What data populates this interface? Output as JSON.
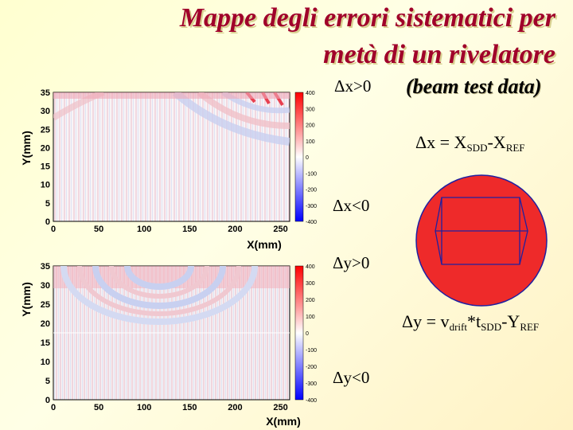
{
  "title": {
    "line1": "Mappe degli errori sistematici per",
    "line2": "metà di un rivelatore"
  },
  "beam_label": "(beam test data)",
  "labels": {
    "dx_pos": "Δx>0",
    "dx_neg": "Δx<0",
    "dy_pos": "Δy>0",
    "dy_neg": "Δy<0"
  },
  "formula_x": {
    "lhs": "Δx = X",
    "sub1": "SDD",
    "mid": "-X",
    "sub2": "REF"
  },
  "formula_y": {
    "lhs": "Δy = v",
    "sub1": "drift",
    "mid1": "*t",
    "sub2": "SDD",
    "mid2": "-Y",
    "sub3": "REF"
  },
  "colors": {
    "title": "#a0002a",
    "detector": "#ee2a2a",
    "positive": "#e0203a",
    "negative": "#2030c0"
  },
  "chart_data": [
    {
      "type": "heatmap",
      "xlabel": "X(mm)",
      "ylabel": "Y(mm)",
      "xlim": [
        0,
        260
      ],
      "ylim": [
        0,
        35
      ],
      "xticks": [
        "0",
        "50",
        "100",
        "150",
        "200",
        "250"
      ],
      "yticks": [
        "35",
        "30",
        "25",
        "20",
        "15",
        "10",
        "5",
        "0"
      ],
      "colorbar": [
        "400",
        "300",
        "200",
        "100",
        "0",
        "-100",
        "-200",
        "-300",
        "-400"
      ]
    },
    {
      "type": "heatmap",
      "xlabel": "X(mm)",
      "ylabel": "Y(mm)",
      "xlim": [
        0,
        260
      ],
      "ylim": [
        0,
        35
      ],
      "xticks": [
        "0",
        "50",
        "100",
        "150",
        "200",
        "250"
      ],
      "yticks": [
        "35",
        "30",
        "25",
        "20",
        "15",
        "10",
        "5",
        "0"
      ],
      "colorbar": [
        "400",
        "300",
        "200",
        "100",
        "0",
        "-100",
        "-200",
        "-300",
        "-400"
      ]
    }
  ]
}
